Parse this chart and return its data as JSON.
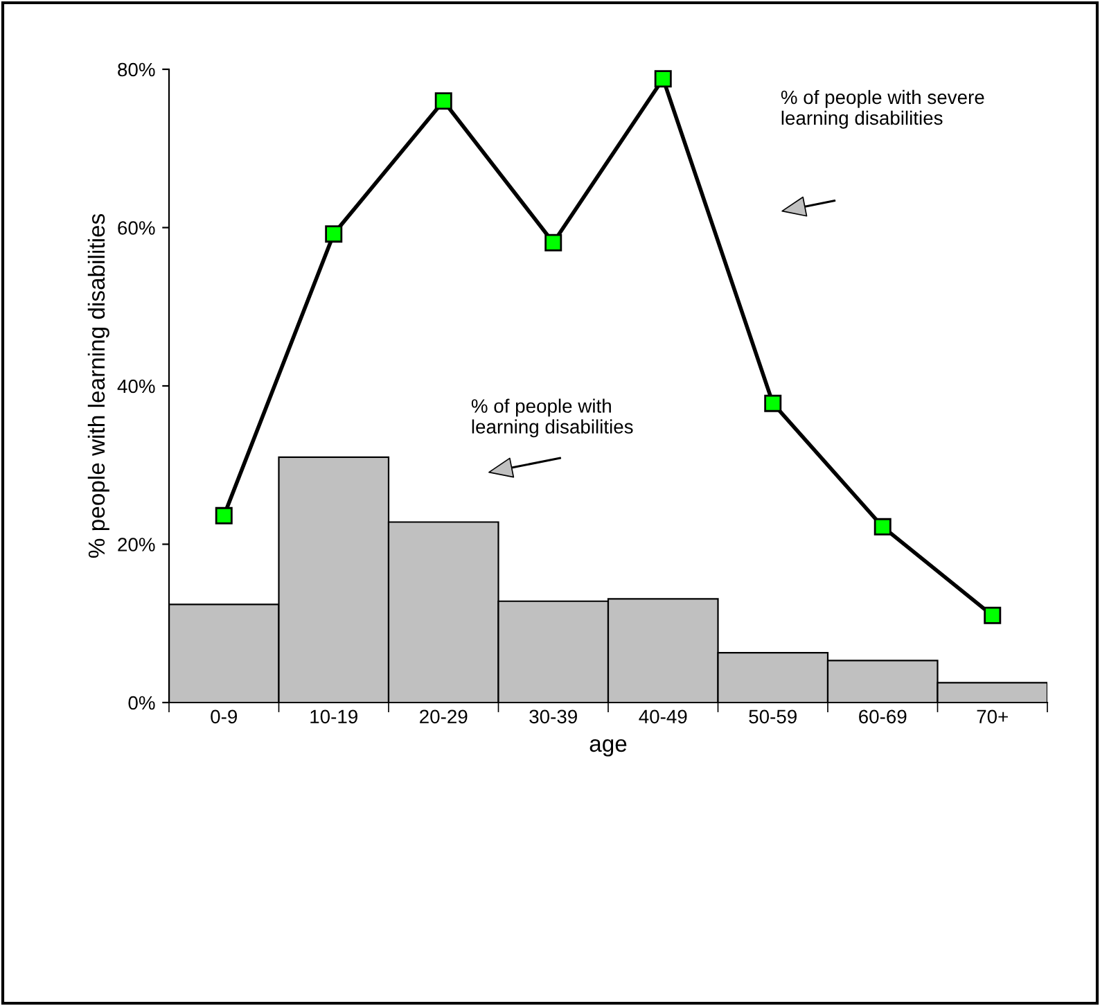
{
  "chart_data": {
    "type": "bar",
    "xlabel": "age",
    "ylabel": "% people with learning disabilities",
    "categories": [
      "0-9",
      "10-19",
      "20-29",
      "30-39",
      "40-49",
      "50-59",
      "60-69",
      "70+"
    ],
    "series": [
      {
        "color": "#c0c0c0",
        "values": [
          12.4,
          31.0,
          22.8,
          12.8,
          13.1,
          6.3,
          5.3,
          2.5
        ]
      },
      {
        "type": "line",
        "color": "#000000",
        "values": [
          23.6,
          59.2,
          76.0,
          58.1,
          78.8,
          37.8,
          22.2,
          11.0
        ]
      }
    ],
    "marker": "square",
    "line_style": "solid",
    "ylim": [
      0,
      80
    ],
    "yticks": [
      {
        "value": 0,
        "label": "0%"
      },
      {
        "value": 20,
        "label": "20%"
      },
      {
        "value": 40,
        "label": "40%"
      },
      {
        "value": 60,
        "label": "60%"
      },
      {
        "value": 80,
        "label": "80%"
      }
    ],
    "grid": false,
    "legend": false,
    "annotations": [
      "% of people with severe\nlearning disabilities",
      "% of people with\nlearning disabilities"
    ]
  }
}
